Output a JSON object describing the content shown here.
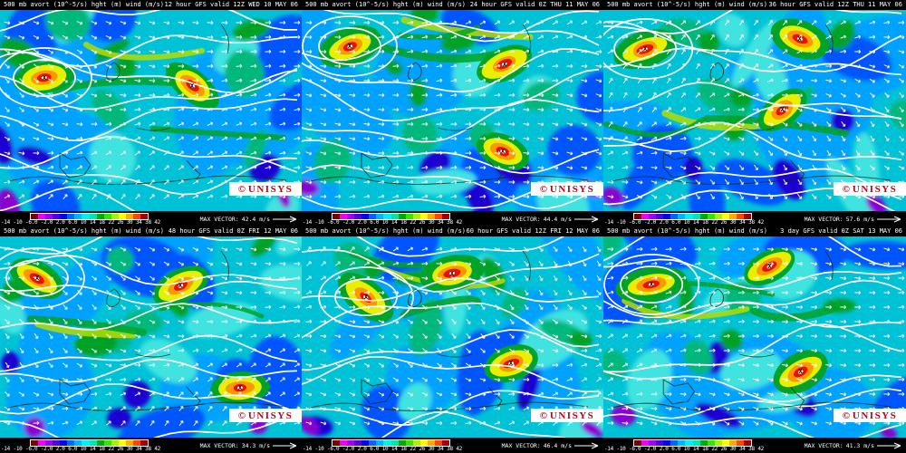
{
  "product": {
    "parameter_label": "500 mb avort (10^-5/s) hght (m) wind (m/s)"
  },
  "panels": [
    {
      "title_left": "500 mb avort (10^-5/s) hght (m) wind (m/s)",
      "title_right": "12 hour GFS valid 12Z WED 10 MAY 06",
      "max_vector": "42.4 m/s"
    },
    {
      "title_left": "500 mb avort (10^-5/s) hght (m) wind (m/s)",
      "title_right": "24 hour GFS valid 0Z THU 11 MAY 06",
      "max_vector": "44.4 m/s"
    },
    {
      "title_left": "500 mb avort (10^-5/s) hght (m) wind (m/s)",
      "title_right": "36 hour GFS valid 12Z THU 11 MAY 06",
      "max_vector": "57.6 m/s"
    },
    {
      "title_left": "500 mb avort (10^-5/s) hght (m) wind (m/s)",
      "title_right": "48 hour GFS valid 0Z FRI 12 MAY 06",
      "max_vector": "34.3 m/s"
    },
    {
      "title_left": "500 mb avort (10^-5/s) hght (m) wind (m/s)",
      "title_right": "60 hour GFS valid 12Z FRI 12 MAY 06",
      "max_vector": "46.4 m/s"
    },
    {
      "title_left": "500 mb avort (10^-5/s) hght (m) wind (m/s)",
      "title_right": "3 day GFS valid 0Z SAT 13 MAY 06",
      "max_vector": "41.3 m/s"
    }
  ],
  "legend": {
    "max_vector_label": "MAX VECTOR:",
    "ticks": [
      "-14",
      "-10",
      "-6.0",
      "-2.0",
      "2.0",
      "6.0",
      "10",
      "14",
      "18",
      "22",
      "26",
      "30",
      "34",
      "38",
      "42"
    ],
    "colors": [
      "#780000",
      "#f000f0",
      "#a000f0",
      "#5000dc",
      "#0000f0",
      "#0064ff",
      "#00b4ff",
      "#00f0f0",
      "#00e6aa",
      "#00aa00",
      "#32e600",
      "#aaf000",
      "#ffff00",
      "#ffaa00",
      "#ff4600",
      "#a00000"
    ]
  },
  "branding": {
    "logo_mark": "©",
    "logo_text": "UNISYS",
    "logo_color": "#c00012"
  },
  "map_palette": {
    "base_cyan": "#00c2d6",
    "azure": "#00a2ff",
    "blue": "#0055ff",
    "deep_blue": "#1a00d2",
    "light_cyan": "#3fe3e0",
    "teal_green": "#00b87c",
    "green": "#00a228",
    "yellow": "#e8f000",
    "orange": "#ff9800",
    "red": "#e81000",
    "purple": "#8a00d2",
    "contour": "#ffffff"
  }
}
